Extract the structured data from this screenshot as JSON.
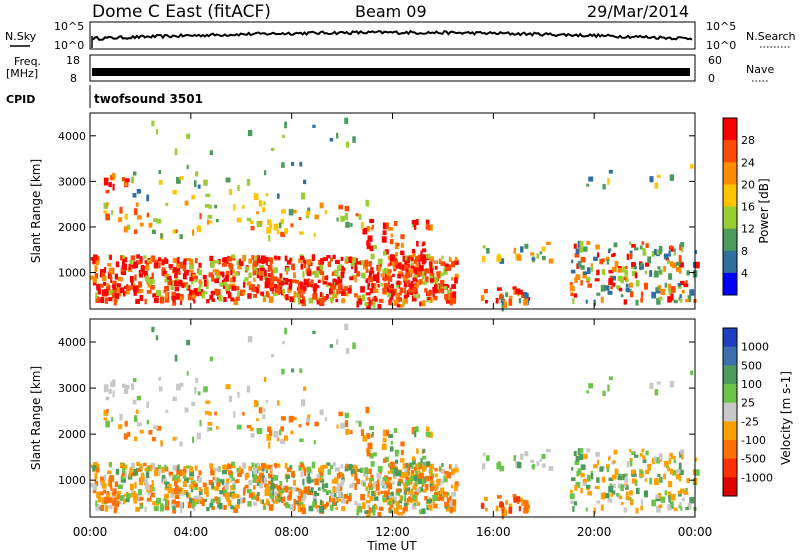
{
  "header": {
    "station": "Dome C East (fitACF)",
    "beam": "Beam 09",
    "date": "29/Mar/2014"
  },
  "params": {
    "nsky_label": "N.Sky",
    "nsky_top": "10^5",
    "nsky_bottom": "10^0",
    "nsearch_label": "N.Search",
    "nsearch_top": "10^5",
    "nsearch_bottom": "10^0",
    "freq_label": "Freq.",
    "freq_unit": "[MHz]",
    "freq_top": "18",
    "freq_bottom": "8",
    "nave_label": "Nave",
    "nave_top": "60",
    "nave_bottom": "0",
    "cpid_label": "CPID",
    "cpid_value": "twofsound 3501"
  },
  "chart_data": [
    {
      "type": "heatmap",
      "name": "power",
      "ylabel": "Slant Range [km]",
      "ylim": [
        200,
        4500
      ],
      "yticks": [
        "1000",
        "2000",
        "3000",
        "4000"
      ],
      "xlim": [
        "00:00",
        "24:00"
      ],
      "colorbar_label": "Power [dB]",
      "colorbar_ticks": [
        "28",
        "24",
        "20",
        "16",
        "12",
        "8",
        "4"
      ],
      "colorbar_colors": [
        "#ff0000",
        "#ff4a00",
        "#ff8c00",
        "#ffc400",
        "#9acd32",
        "#4c9a5c",
        "#2e6fa0",
        "#0000ff"
      ]
    },
    {
      "type": "heatmap",
      "name": "velocity",
      "ylabel": "Slant Range [km]",
      "ylim": [
        200,
        4500
      ],
      "yticks": [
        "1000",
        "2000",
        "3000",
        "4000"
      ],
      "xlabel": "Time UT",
      "xticks": [
        "00:00",
        "04:00",
        "08:00",
        "12:00",
        "16:00",
        "20:00",
        "00:00"
      ],
      "colorbar_label": "Velocity [m s-1]",
      "colorbar_ticks": [
        "1000",
        "500",
        "100",
        "25",
        "-25",
        "-100",
        "-500",
        "-1000"
      ],
      "colorbar_colors": [
        "#1e3fbf",
        "#3a6fb0",
        "#4c9a5c",
        "#6bc44a",
        "#c8c8c8",
        "#ffa000",
        "#ff7000",
        "#ff3000",
        "#e00000"
      ]
    }
  ]
}
